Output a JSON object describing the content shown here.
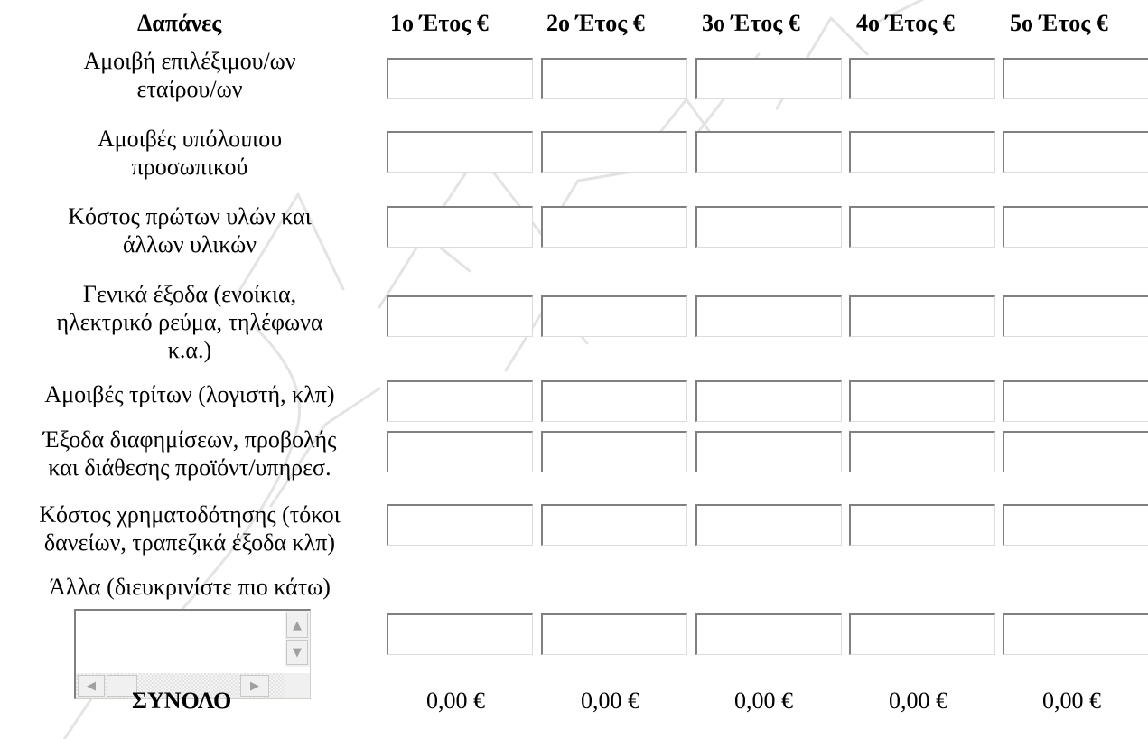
{
  "table": {
    "header_label": "Δαπάνες",
    "year_headers": [
      "1ο Έτος €",
      "2ο Έτος €",
      "3ο Έτος €",
      "4ο Έτος €",
      "5ο Έτος €"
    ],
    "rows": [
      {
        "label_lines": [
          "Αμοιβή επιλέξιμου/ων",
          "εταίρου/ων"
        ],
        "values": [
          "",
          "",
          "",
          "",
          ""
        ]
      },
      {
        "label_lines": [
          "Αμοιβές υπόλοιπου",
          "προσωπικού"
        ],
        "values": [
          "",
          "",
          "",
          "",
          ""
        ]
      },
      {
        "label_lines": [
          "Κόστος πρώτων υλών και",
          "άλλων υλικών"
        ],
        "values": [
          "",
          "",
          "",
          "",
          ""
        ]
      },
      {
        "label_lines": [
          "Γενικά έξοδα (ενοίκια,",
          "ηλεκτρικό ρεύμα, τηλέφωνα",
          "κ.α.)"
        ],
        "values": [
          "",
          "",
          "",
          "",
          ""
        ]
      },
      {
        "label_lines": [
          "Αμοιβές τρίτων (λογιστή, κλπ)"
        ],
        "values": [
          "",
          "",
          "",
          "",
          ""
        ]
      },
      {
        "label_lines": [
          "Έξοδα διαφημίσεων, προβολής",
          "και διάθεσης προϊόντ/υπηρεσ."
        ],
        "values": [
          "",
          "",
          "",
          "",
          ""
        ]
      },
      {
        "label_lines": [
          "Κόστος χρηματοδότησης (τόκοι",
          "δανείων, τραπεζικά έξοδα κλπ)"
        ],
        "values": [
          "",
          "",
          "",
          "",
          ""
        ]
      },
      {
        "label_lines": [
          "Άλλα (διευκρινίστε πιο κάτω)"
        ],
        "values": [
          "",
          "",
          "",
          "",
          ""
        ]
      }
    ],
    "other_description": "",
    "total_label": "ΣΥΝΟΛΟ",
    "totals": [
      "0,00 €",
      "0,00 €",
      "0,00 €",
      "0,00 €",
      "0,00 €"
    ]
  },
  "icons": {
    "scroll_up": "scroll-up-arrow-icon",
    "scroll_down": "scroll-down-arrow-icon",
    "scroll_left": "scroll-left-arrow-icon",
    "scroll_right": "scroll-right-arrow-icon"
  },
  "colors": {
    "field_border_dark": "#808080",
    "field_border_light": "#dcdcdc",
    "watermark": "#b8b8b8"
  }
}
